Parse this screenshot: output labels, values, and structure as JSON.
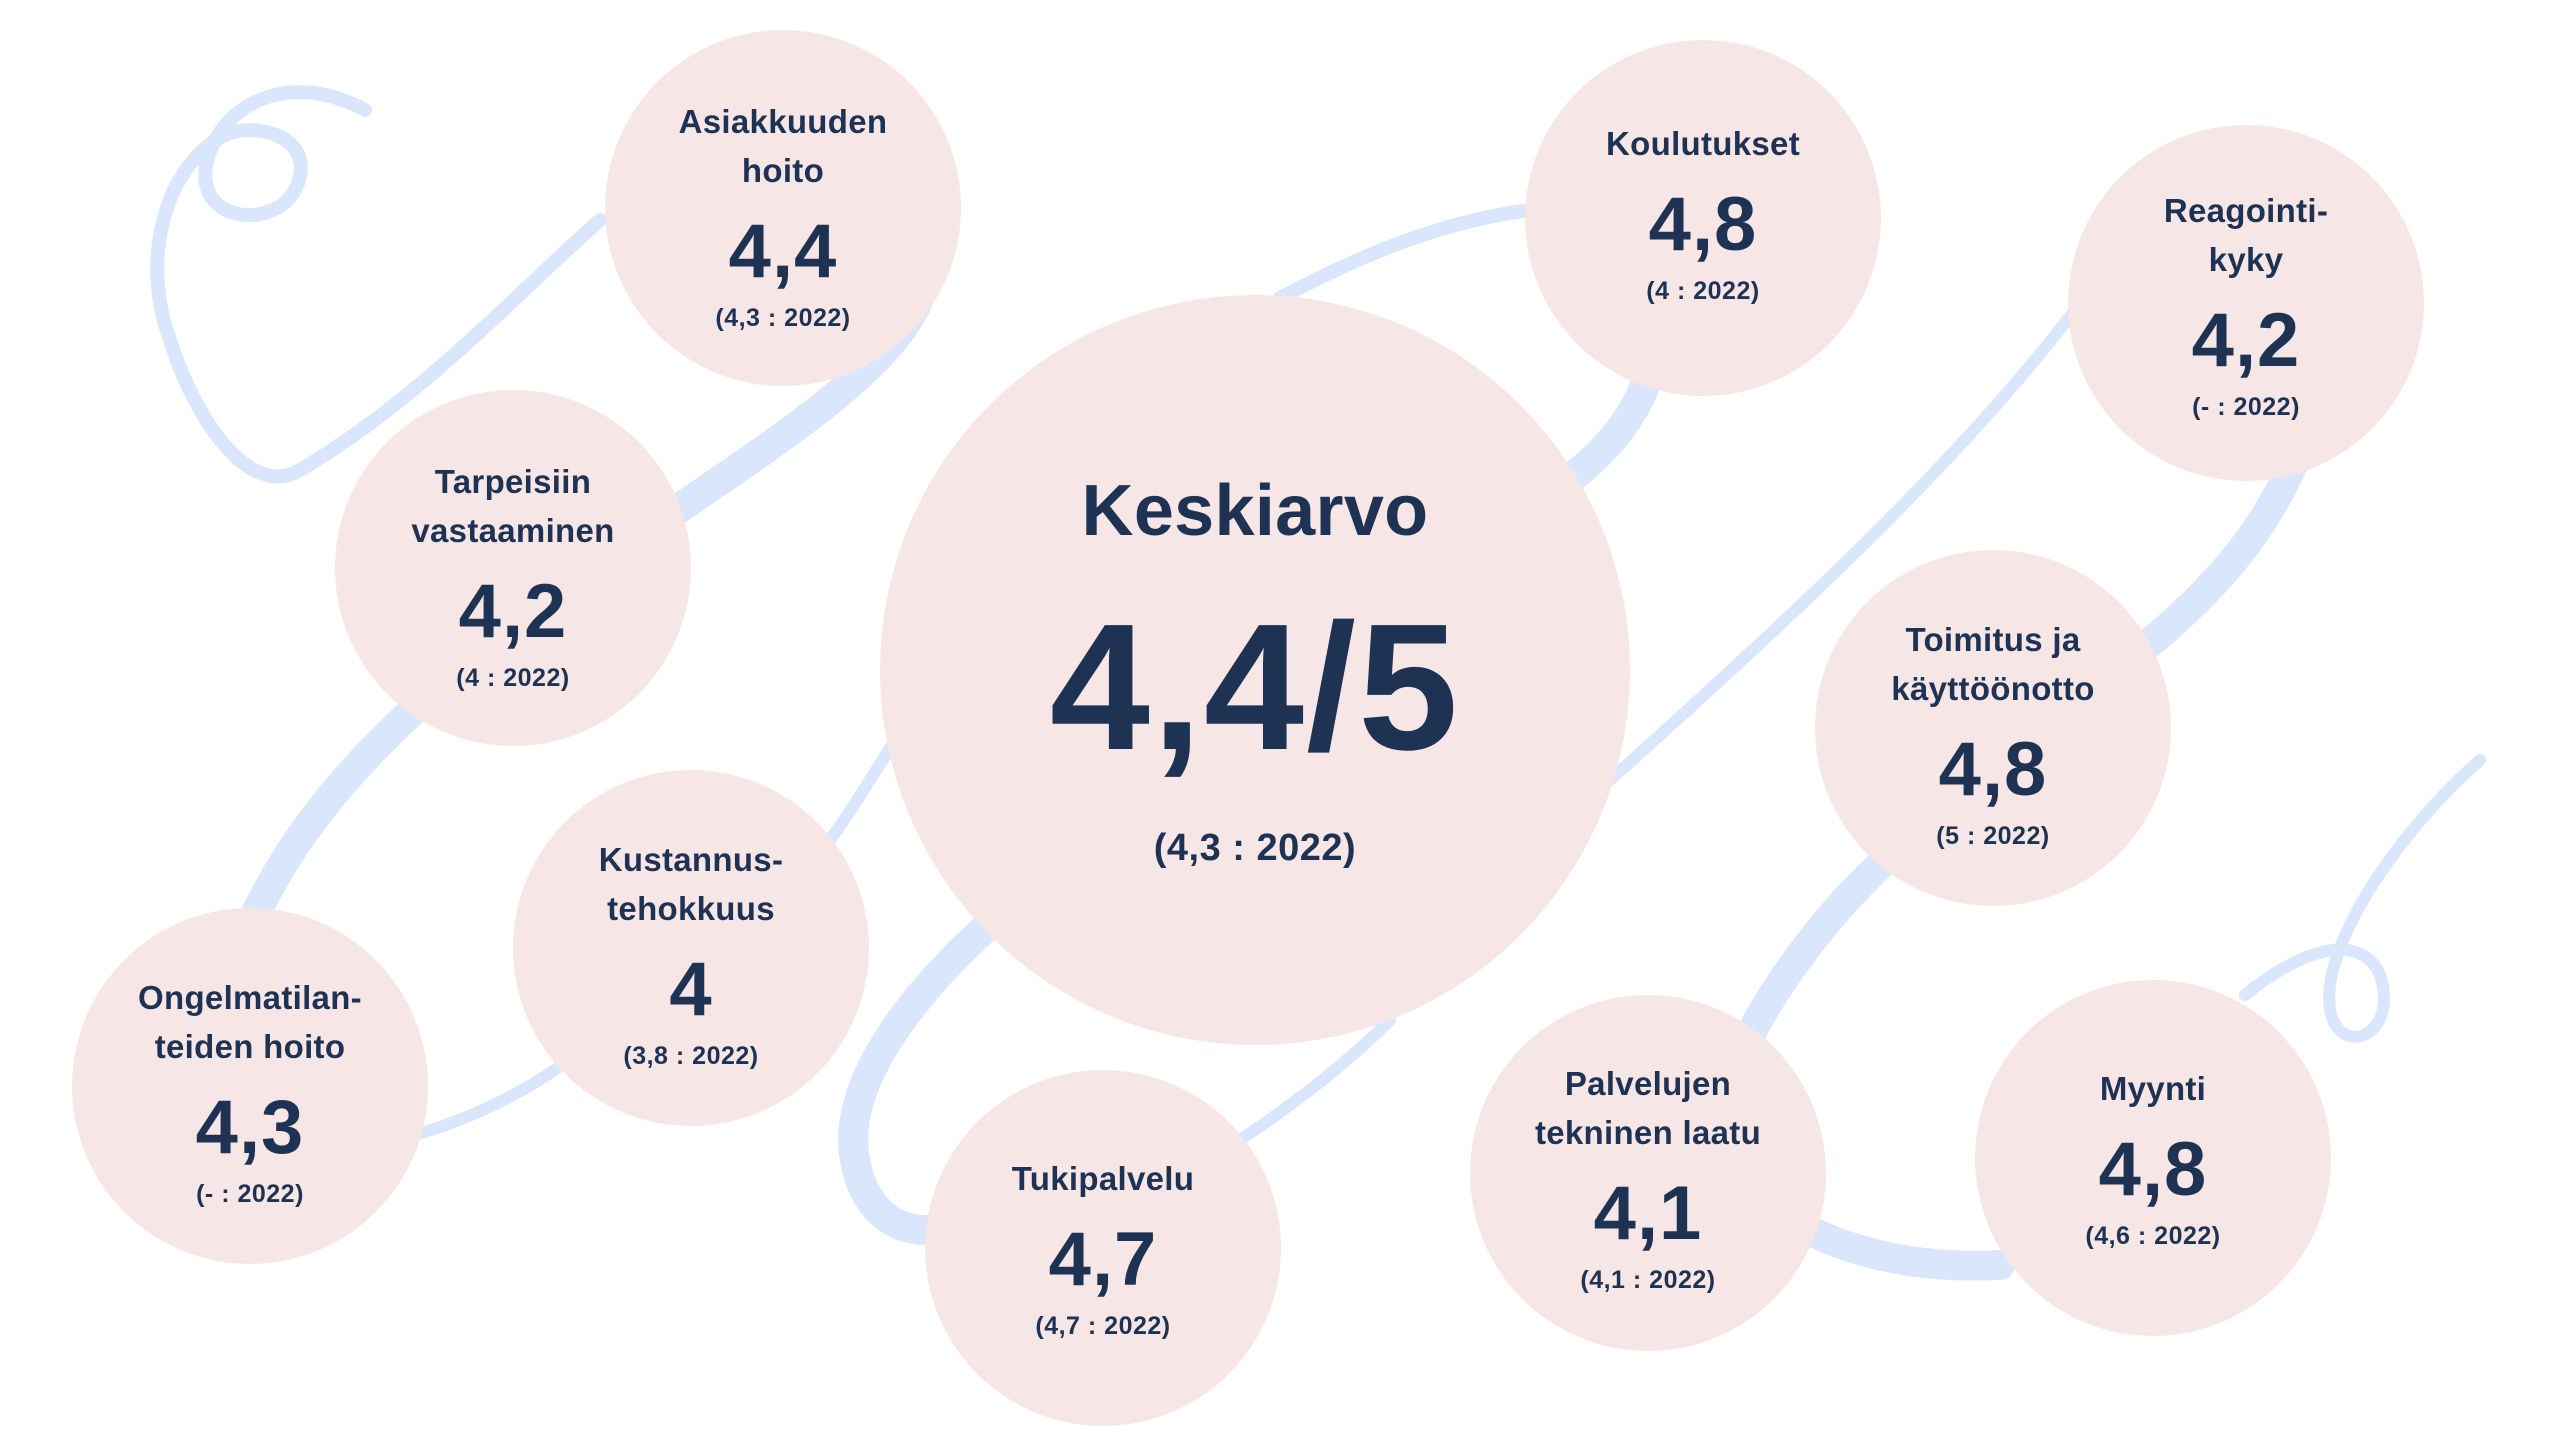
{
  "colors": {
    "bubble_fill": "#f7e6e6",
    "text": "#1e3354",
    "ribbon": "#d9e6fb"
  },
  "summary": {
    "label": "Keskiarvo",
    "value": "4,4/5",
    "previous": "(4,3 : 2022)"
  },
  "categories": [
    {
      "id": "asiakkuuden-hoito",
      "label": "Asiakkuuden\nhoito",
      "value": "4,4",
      "previous": "(4,3 : 2022)"
    },
    {
      "id": "tarpeisiin-vastaaminen",
      "label": "Tarpeisiin\nvastaaminen",
      "value": "4,2",
      "previous": "(4 : 2022)"
    },
    {
      "id": "kustannustehokkuus",
      "label": "Kustannus-\ntehokkuus",
      "value": "4",
      "previous": "(3,8 : 2022)"
    },
    {
      "id": "ongelmatilanteiden-hoito",
      "label": "Ongelmatilan-\nteiden hoito",
      "value": "4,3",
      "previous": "(- : 2022)"
    },
    {
      "id": "tukipalvelu",
      "label": "Tukipalvelu",
      "value": "4,7",
      "previous": "(4,7 : 2022)"
    },
    {
      "id": "koulutukset",
      "label": "Koulutukset",
      "value": "4,8",
      "previous": "(4 : 2022)"
    },
    {
      "id": "reagointikyky",
      "label": "Reagointi-\nkyky",
      "value": "4,2",
      "previous": "(- : 2022)"
    },
    {
      "id": "toimitus-ja-kayttoonotto",
      "label": "Toimitus ja\nkäyttöönotto",
      "value": "4,8",
      "previous": "(5 : 2022)"
    },
    {
      "id": "palvelujen-tekninen-laatu",
      "label": "Palvelujen\ntekninen laatu",
      "value": "4,1",
      "previous": "(4,1 : 2022)"
    },
    {
      "id": "myynti",
      "label": "Myynti",
      "value": "4,8",
      "previous": "(4,6 : 2022)"
    }
  ]
}
